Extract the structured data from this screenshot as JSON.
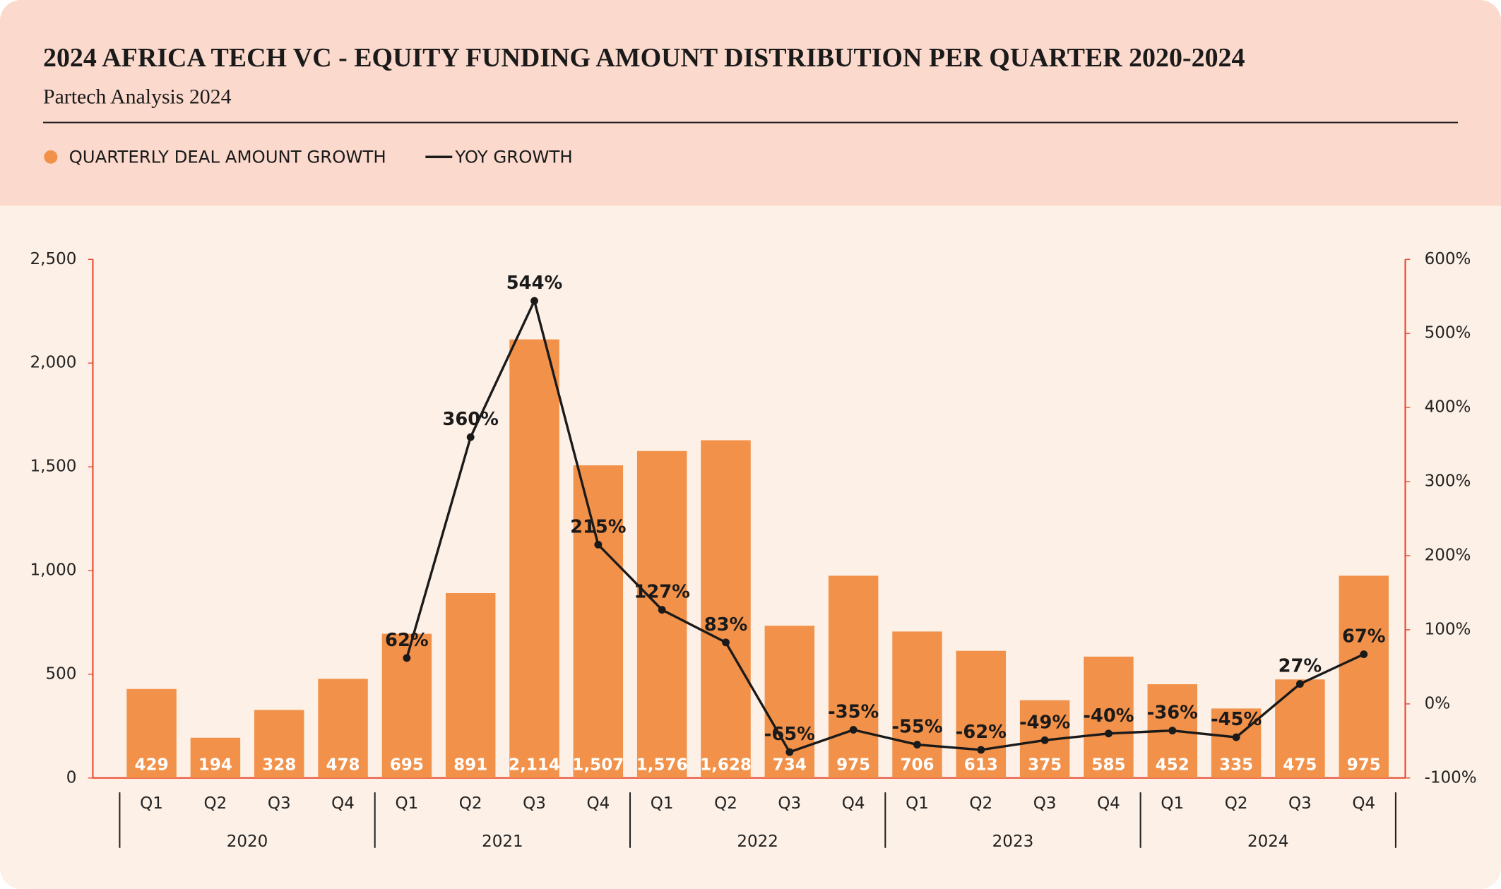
{
  "chart_data": {
    "type": "bar_line",
    "title": "2024 AFRICA TECH VC - EQUITY FUNDING AMOUNT DISTRIBUTION PER QUARTER 2020-2024",
    "subtitle": "Partech Analysis 2024",
    "categories": [
      "Q1",
      "Q2",
      "Q3",
      "Q4",
      "Q1",
      "Q2",
      "Q3",
      "Q4",
      "Q1",
      "Q2",
      "Q3",
      "Q4",
      "Q1",
      "Q2",
      "Q3",
      "Q4",
      "Q1",
      "Q2",
      "Q3",
      "Q4"
    ],
    "x_groups": [
      "2020",
      "2021",
      "2022",
      "2023",
      "2024"
    ],
    "series": [
      {
        "name": "QUARTERLY DEAL AMOUNT GROWTH",
        "type": "bar",
        "color": "#f2914a",
        "axis": "y",
        "values": [
          429,
          194,
          328,
          478,
          695,
          891,
          2114,
          1507,
          1576,
          1628,
          734,
          975,
          706,
          613,
          375,
          585,
          452,
          335,
          475,
          975
        ],
        "value_labels": [
          "429",
          "194",
          "328",
          "478",
          "695",
          "891",
          "2,114",
          "1,507",
          "1,576",
          "1,628",
          "734",
          "975",
          "706",
          "613",
          "375",
          "585",
          "452",
          "335",
          "475",
          "975"
        ]
      },
      {
        "name": "YOY GROWTH",
        "type": "line",
        "color": "#1a1a1a",
        "axis": "y2",
        "values": [
          null,
          null,
          null,
          null,
          62,
          360,
          544,
          215,
          127,
          83,
          -65,
          -35,
          -55,
          -62,
          -49,
          -40,
          -36,
          -45,
          27,
          67
        ],
        "value_labels": [
          null,
          null,
          null,
          null,
          "62%",
          "360%",
          "544%",
          "215%",
          "127%",
          "83%",
          "-65%",
          "-35%",
          "-55%",
          "-62%",
          "-49%",
          "-40%",
          "-36%",
          "-45%",
          "27%",
          "67%"
        ]
      }
    ],
    "ylim": [
      0,
      2500
    ],
    "yticks": [
      0,
      500,
      {
        "value": 1000,
        "label": "1,000"
      },
      {
        "value": 1500,
        "label": "1,500"
      },
      {
        "value": 2000,
        "label": "2,000"
      },
      {
        "value": 2500,
        "label": "2,500"
      }
    ],
    "y2lim": [
      -100,
      600
    ],
    "y2ticks": [
      {
        "value": -100,
        "label": "-100%"
      },
      {
        "value": 0,
        "label": "0%"
      },
      {
        "value": 100,
        "label": "100%"
      },
      {
        "value": 200,
        "label": "200%"
      },
      {
        "value": 300,
        "label": "300%"
      },
      {
        "value": 400,
        "label": "400%"
      },
      {
        "value": 500,
        "label": "500%"
      },
      {
        "value": 600,
        "label": "600%"
      }
    ]
  }
}
